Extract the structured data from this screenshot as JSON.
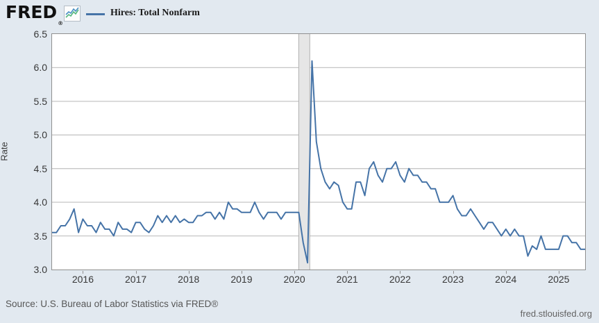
{
  "header": {
    "logo_text": "FRED",
    "logo_reg": "®",
    "legend_label": "Hires: Total Nonfarm"
  },
  "footer": {
    "source": "Source: U.S. Bureau of Labor Statistics via FRED®",
    "site": "fred.stlouisfed.org"
  },
  "colors": {
    "line": "#4573a7",
    "background": "#e2e9f0",
    "plot_bg": "#ffffff",
    "grid": "#c6c6c6",
    "border": "#8f8f8f",
    "recession_fill": "#e6e6e6",
    "recession_edge": "#b0b0b0",
    "icon_blue": "#4a90c4",
    "icon_green": "#54b87e"
  },
  "chart_data": {
    "type": "line",
    "title": "Hires: Total Nonfarm",
    "ylabel": "Rate",
    "series_name": "Hires: Total Nonfarm",
    "frequency": "monthly",
    "start": "2015-06",
    "end": "2025-07",
    "ylim": [
      3.0,
      6.5
    ],
    "grid": "horizontal",
    "legend_position": "top-left",
    "y_ticks": [
      "6.5",
      "6.0",
      "5.5",
      "5.0",
      "4.5",
      "4.0",
      "3.5",
      "3.0"
    ],
    "x_ticks": [
      "2016",
      "2017",
      "2018",
      "2019",
      "2020",
      "2021",
      "2022",
      "2023",
      "2024",
      "2025"
    ],
    "recession_band": {
      "start": "2020-02",
      "end": "2020-04"
    },
    "values": [
      3.55,
      3.55,
      3.65,
      3.65,
      3.75,
      3.9,
      3.55,
      3.75,
      3.65,
      3.65,
      3.55,
      3.7,
      3.6,
      3.6,
      3.5,
      3.7,
      3.6,
      3.6,
      3.55,
      3.7,
      3.7,
      3.6,
      3.55,
      3.65,
      3.8,
      3.7,
      3.8,
      3.7,
      3.8,
      3.7,
      3.75,
      3.7,
      3.7,
      3.8,
      3.8,
      3.85,
      3.85,
      3.75,
      3.85,
      3.75,
      4.0,
      3.9,
      3.9,
      3.85,
      3.85,
      3.85,
      4.0,
      3.85,
      3.75,
      3.85,
      3.85,
      3.85,
      3.75,
      3.85,
      3.85,
      3.85,
      3.85,
      3.4,
      3.1,
      6.1,
      4.9,
      4.5,
      4.3,
      4.2,
      4.3,
      4.25,
      4.0,
      3.9,
      3.9,
      4.3,
      4.3,
      4.1,
      4.5,
      4.6,
      4.4,
      4.3,
      4.5,
      4.5,
      4.6,
      4.4,
      4.3,
      4.5,
      4.4,
      4.4,
      4.3,
      4.3,
      4.2,
      4.2,
      4.0,
      4.0,
      4.0,
      4.1,
      3.9,
      3.8,
      3.8,
      3.9,
      3.8,
      3.7,
      3.6,
      3.7,
      3.7,
      3.6,
      3.5,
      3.6,
      3.5,
      3.6,
      3.5,
      3.5,
      3.2,
      3.35,
      3.3,
      3.5,
      3.3,
      3.3,
      3.3,
      3.3,
      3.5,
      3.5,
      3.4,
      3.4,
      3.3,
      3.3
    ]
  }
}
